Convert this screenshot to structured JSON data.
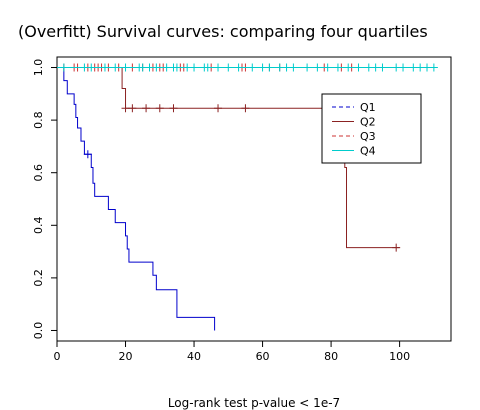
{
  "chart_data": {
    "type": "line",
    "title": "(Overfitt) Survival curves: comparing four quartiles",
    "xlabel": "Log-rank test p-value  < 1e-7",
    "ylabel": "",
    "xlim": [
      0,
      115
    ],
    "ylim": [
      -0.04,
      1.04
    ],
    "x_ticks": [
      0,
      20,
      40,
      60,
      80,
      100
    ],
    "y_ticks": [
      0.0,
      0.2,
      0.4,
      0.6,
      0.8,
      1.0
    ],
    "x_tick_labels": [
      "0",
      "20",
      "40",
      "60",
      "80",
      "100"
    ],
    "y_tick_labels": [
      "0.0",
      "0.2",
      "0.4",
      "0.6",
      "0.8",
      "1.0"
    ],
    "legend_position": "top-right",
    "series": [
      {
        "name": "Q1",
        "color": "#0000cc",
        "line_style": "dashed",
        "steps": [
          [
            0,
            1.0
          ],
          [
            2,
            0.95
          ],
          [
            3,
            0.9
          ],
          [
            5,
            0.86
          ],
          [
            5.5,
            0.81
          ],
          [
            6,
            0.77
          ],
          [
            7,
            0.72
          ],
          [
            8,
            0.67
          ],
          [
            10,
            0.62
          ],
          [
            10.5,
            0.56
          ],
          [
            11,
            0.51
          ],
          [
            15,
            0.46
          ],
          [
            17,
            0.41
          ],
          [
            20,
            0.36
          ],
          [
            20.5,
            0.31
          ],
          [
            21,
            0.26
          ],
          [
            28,
            0.21
          ],
          [
            29,
            0.155
          ],
          [
            35,
            0.05
          ],
          [
            46,
            0.0
          ]
        ],
        "end": 46,
        "censor": [
          9
        ]
      },
      {
        "name": "Q2",
        "color": "#8b2222",
        "line_style": "solid",
        "steps": [
          [
            0,
            1.0
          ],
          [
            19,
            0.92
          ],
          [
            20,
            0.845
          ],
          [
            84,
            0.62
          ],
          [
            84.5,
            0.315
          ]
        ],
        "end": 100,
        "censor": [
          20,
          22,
          26,
          30,
          34,
          47,
          55,
          99
        ]
      },
      {
        "name": "Q3",
        "color": "#cc3333",
        "line_style": "dashed",
        "steps": [
          [
            0,
            1.0
          ]
        ],
        "end": 88,
        "censor": [
          2,
          5,
          6,
          9,
          11,
          12,
          13,
          15,
          18,
          22,
          25,
          28,
          30,
          31,
          36,
          37,
          45,
          54,
          55,
          62,
          65,
          78,
          83,
          86,
          88
        ]
      },
      {
        "name": "Q4",
        "color": "#00cccc",
        "line_style": "solid",
        "steps": [
          [
            0,
            1.0
          ]
        ],
        "end": 111,
        "censor": [
          2,
          8,
          10,
          14,
          17,
          20,
          24,
          25,
          27,
          29,
          32,
          34,
          35,
          38,
          40,
          43,
          44,
          47,
          50,
          53,
          57,
          60,
          62,
          65,
          67,
          69,
          73,
          76,
          79,
          82,
          85,
          88,
          91,
          93,
          95,
          99,
          101,
          104,
          106,
          108,
          110
        ]
      }
    ]
  }
}
